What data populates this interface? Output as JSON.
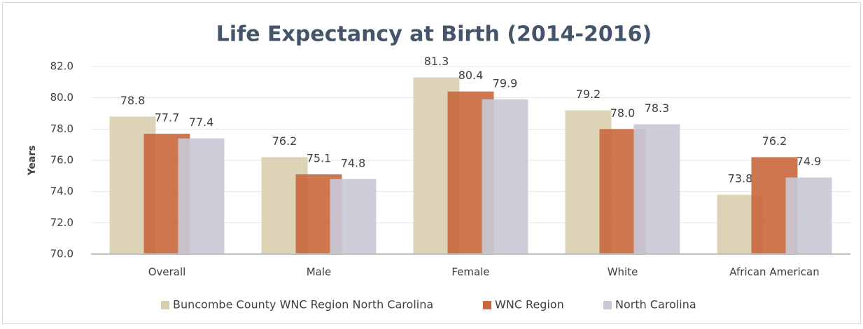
{
  "chart_data": {
    "type": "bar",
    "title": "Life Expectancy at Birth (2014-2016)",
    "y_label": "Years",
    "categories": [
      "Overall",
      "Male",
      "Female",
      "White",
      "African American"
    ],
    "series": [
      {
        "name": "Buncombe County WNC Region North Carolina",
        "color": "#d9cfb0",
        "values": [
          78.8,
          76.2,
          81.3,
          79.2,
          73.8
        ],
        "value_labels": [
          "78.8",
          "76.2",
          "81.3",
          "79.2",
          "73.8"
        ]
      },
      {
        "name": "WNC Region",
        "color": "#c9683c",
        "values": [
          77.7,
          75.1,
          80.4,
          78.0,
          76.2
        ],
        "value_labels": [
          "77.7",
          "75.1",
          "80.4",
          "78.0",
          "76.2"
        ]
      },
      {
        "name": "North Carolina",
        "color": "#c9c9d6",
        "values": [
          77.4,
          74.8,
          79.9,
          78.3,
          74.9
        ],
        "value_labels": [
          "77.4",
          "74.8",
          "79.9",
          "78.3",
          "74.9"
        ]
      }
    ],
    "ylim": [
      70,
      82
    ],
    "yticks": [
      {
        "value": 70,
        "label": "70.0"
      },
      {
        "value": 72,
        "label": "72.0"
      },
      {
        "value": 74,
        "label": "74.0"
      },
      {
        "value": 76,
        "label": "76.0"
      },
      {
        "value": 78,
        "label": "78.0"
      },
      {
        "value": 80,
        "label": "80.0"
      },
      {
        "value": 82,
        "label": "82.0"
      }
    ],
    "grid": true,
    "legend": "bottom"
  }
}
